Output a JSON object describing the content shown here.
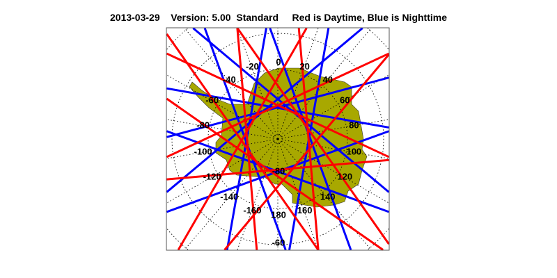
{
  "title": {
    "date": "2013-03-29",
    "version": "Version: 5.00",
    "mode": "Standard",
    "legend": "Red is Daytime, Blue is Nighttime"
  },
  "map": {
    "projection": "south polar stereographic",
    "land_color": "#a8a800",
    "day_color": "#ff0000",
    "night_color": "#0000ff",
    "longitude_labels": [
      "0",
      "20",
      "40",
      "60",
      "80",
      "100",
      "120",
      "140",
      "160",
      "180",
      "-160",
      "-140",
      "-120",
      "-100",
      "-80",
      "-60",
      "-40",
      "-20"
    ],
    "latitude_labels": [
      "-80",
      "-60"
    ],
    "tracks": [
      {
        "lon": 10,
        "color": "night"
      },
      {
        "lon": 40,
        "color": "night"
      },
      {
        "lon": 70,
        "color": "night"
      },
      {
        "lon": 100,
        "color": "night"
      },
      {
        "lon": 160,
        "color": "night"
      },
      {
        "lon": 200,
        "color": "night"
      },
      {
        "lon": 250,
        "color": "night"
      },
      {
        "lon": 280,
        "color": "night"
      },
      {
        "lon": 320,
        "color": "night"
      },
      {
        "lon": 345,
        "color": "night"
      },
      {
        "lon": 25,
        "color": "day"
      },
      {
        "lon": 55,
        "color": "day"
      },
      {
        "lon": 85,
        "color": "day"
      },
      {
        "lon": 130,
        "color": "day"
      },
      {
        "lon": 175,
        "color": "day"
      },
      {
        "lon": 215,
        "color": "day"
      },
      {
        "lon": 235,
        "color": "day"
      },
      {
        "lon": 265,
        "color": "day"
      },
      {
        "lon": 300,
        "color": "day"
      },
      {
        "lon": 335,
        "color": "day"
      }
    ]
  }
}
